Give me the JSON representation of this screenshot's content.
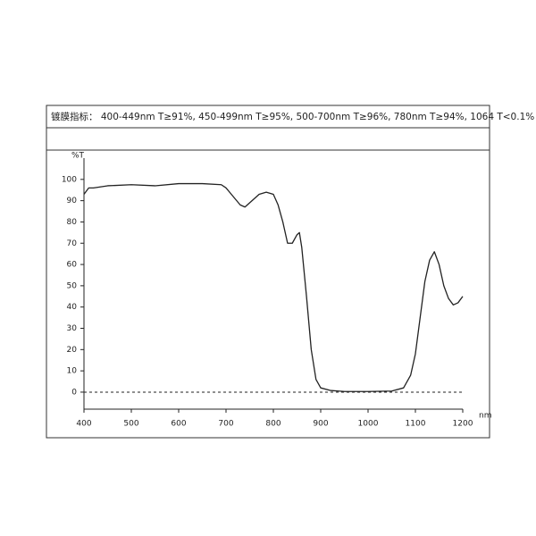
{
  "chart_data": {
    "type": "line",
    "annotation": "镀膜指标：  400-449nm T≥91%, 450-499nm T≥95%, 500-700nm T≥96%, 780nm T≥94%, 1064 T<0.1%",
    "y_label": "%T",
    "x_label": "nm",
    "color": "#222222",
    "x": [
      400,
      410,
      420,
      450,
      500,
      550,
      600,
      650,
      690,
      700,
      715,
      730,
      740,
      755,
      770,
      785,
      800,
      810,
      820,
      830,
      840,
      850,
      855,
      860,
      870,
      880,
      890,
      900,
      920,
      950,
      1000,
      1050,
      1075,
      1090,
      1100,
      1110,
      1120,
      1130,
      1140,
      1150,
      1160,
      1170,
      1180,
      1190,
      1200
    ],
    "values": [
      93,
      96,
      96,
      97,
      97.5,
      97,
      98,
      98,
      97.5,
      96,
      92,
      88,
      87,
      90,
      93,
      94,
      93,
      88,
      80,
      70,
      70,
      74,
      75,
      68,
      45,
      20,
      6,
      2,
      0.8,
      0.3,
      0.3,
      0.5,
      2,
      8,
      18,
      35,
      52,
      62,
      66,
      60,
      50,
      44,
      41,
      42,
      45
    ],
    "zero_line": 0,
    "xlim": [
      400,
      1200
    ],
    "xticks": [
      400,
      500,
      600,
      700,
      800,
      900,
      1000,
      1100,
      1200
    ],
    "ylim": [
      -8,
      110
    ],
    "yticks": [
      0,
      10,
      20,
      30,
      40,
      50,
      60,
      70,
      80,
      90,
      100
    ]
  }
}
